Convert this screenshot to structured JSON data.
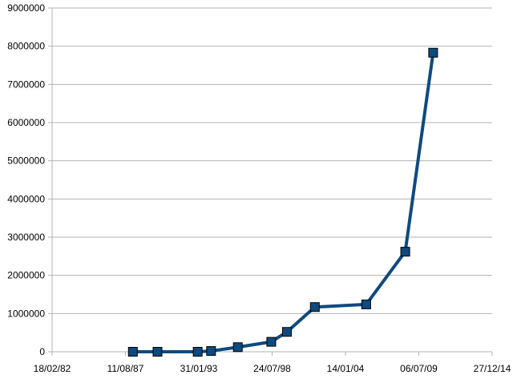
{
  "chart_data": {
    "type": "line",
    "title": "",
    "xlabel": "",
    "ylabel": "",
    "x_axis_kind": "date",
    "xlim": [
      "1982-02-18",
      "2014-12-27"
    ],
    "ylim": [
      0,
      9000000
    ],
    "grid": "horizontal",
    "legend": "none",
    "y_ticks": [
      {
        "value": 0,
        "label": "0"
      },
      {
        "value": 1000000,
        "label": "1000000"
      },
      {
        "value": 2000000,
        "label": "2000000"
      },
      {
        "value": 3000000,
        "label": "3000000"
      },
      {
        "value": 4000000,
        "label": "4000000"
      },
      {
        "value": 5000000,
        "label": "5000000"
      },
      {
        "value": 6000000,
        "label": "6000000"
      },
      {
        "value": 7000000,
        "label": "7000000"
      },
      {
        "value": 8000000,
        "label": "8000000"
      },
      {
        "value": 9000000,
        "label": "9000000"
      }
    ],
    "x_ticks": [
      {
        "value": "1982-02-18",
        "label": "18/02/82"
      },
      {
        "value": "1987-08-11",
        "label": "11/08/87"
      },
      {
        "value": "1993-01-31",
        "label": "31/01/93"
      },
      {
        "value": "1998-07-24",
        "label": "24/07/98"
      },
      {
        "value": "2004-01-14",
        "label": "14/01/04"
      },
      {
        "value": "2009-07-06",
        "label": "06/07/09"
      },
      {
        "value": "2014-12-27",
        "label": "27/12/14"
      }
    ],
    "series": [
      {
        "color": "#0f4a7e",
        "marker": "square",
        "points": [
          {
            "x": "1988-03-01",
            "y": 0
          },
          {
            "x": "1990-01-01",
            "y": 0
          },
          {
            "x": "1993-01-01",
            "y": 0
          },
          {
            "x": "1994-01-01",
            "y": 20000
          },
          {
            "x": "1996-01-01",
            "y": 120000
          },
          {
            "x": "1998-07-01",
            "y": 260000
          },
          {
            "x": "1999-09-01",
            "y": 520000
          },
          {
            "x": "2001-10-01",
            "y": 1170000
          },
          {
            "x": "2005-08-01",
            "y": 1240000
          },
          {
            "x": "2008-07-01",
            "y": 2620000
          },
          {
            "x": "2010-08-01",
            "y": 7830000
          }
        ]
      }
    ]
  }
}
